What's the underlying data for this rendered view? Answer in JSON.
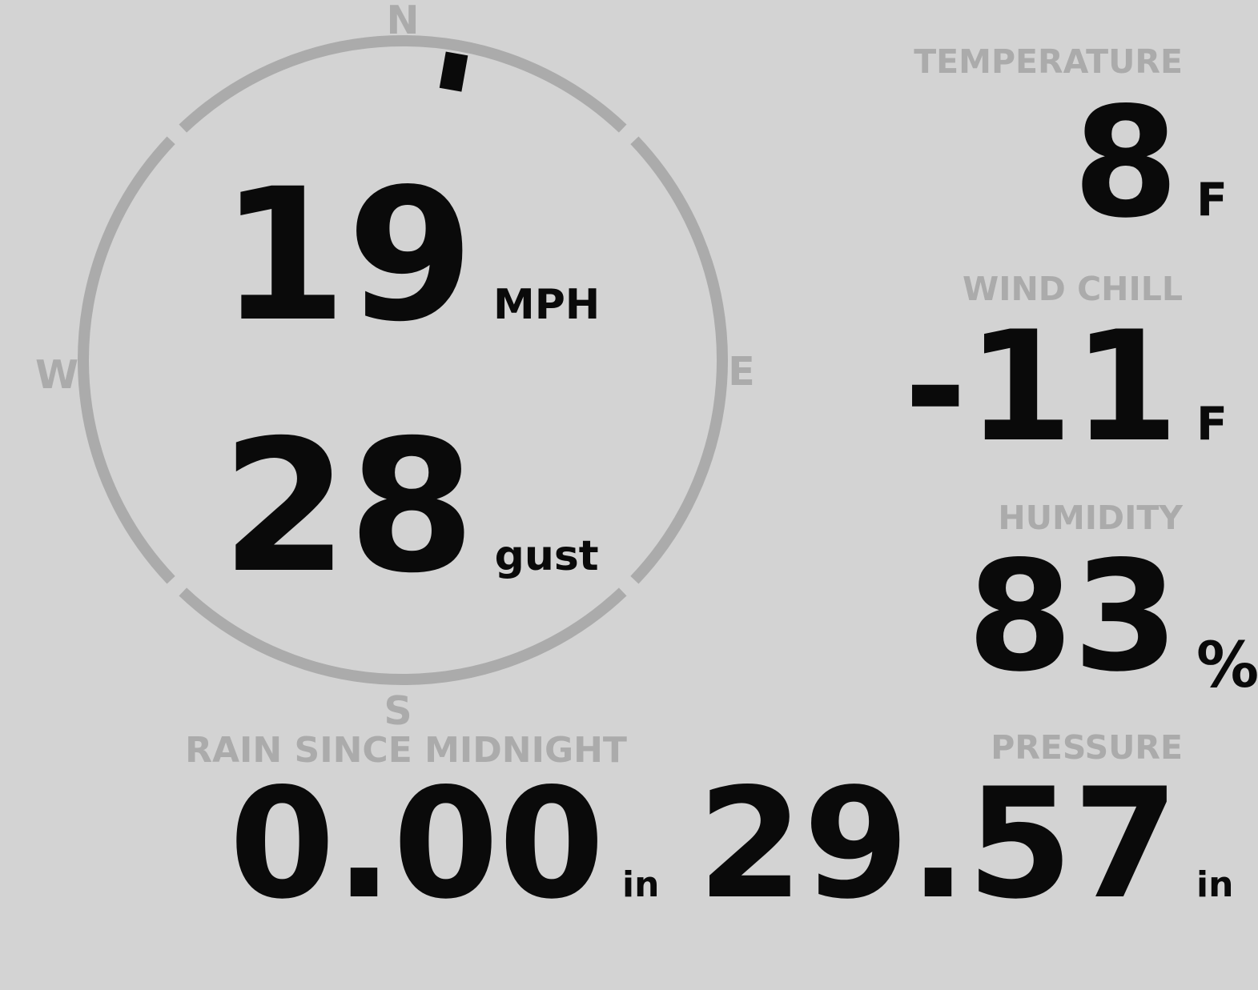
{
  "theme": {
    "background": "#d3d3d3",
    "muted": "#ababab",
    "foreground": "#0a0a0a"
  },
  "compass": {
    "north_label": "N",
    "east_label": "E",
    "south_label": "S",
    "west_label": "W",
    "wind_direction_deg": 10
  },
  "wind": {
    "speed": "19",
    "speed_unit": "MPH",
    "gust": "28",
    "gust_unit": "gust"
  },
  "metrics": [
    {
      "id": "temperature",
      "label": "TEMPERATURE",
      "value": "8",
      "unit": "F"
    },
    {
      "id": "wind-chill",
      "label": "WIND CHILL",
      "value": "-11",
      "unit": "F"
    },
    {
      "id": "humidity",
      "label": "HUMIDITY",
      "value": "83",
      "unit": "%"
    },
    {
      "id": "pressure",
      "label": "PRESSURE",
      "value": "29.57",
      "unit": "in"
    }
  ],
  "rain": {
    "label": "RAIN SINCE MIDNIGHT",
    "value": "0.00",
    "unit": "in"
  }
}
